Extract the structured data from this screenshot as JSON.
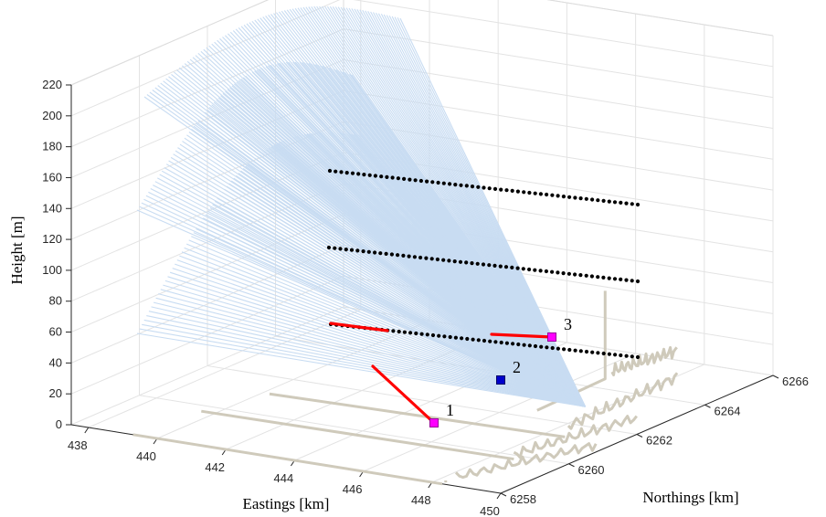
{
  "chart_data": {
    "type": "scatter",
    "title": "",
    "xlabel": "Eastings [km]",
    "ylabel": "Northings [km]",
    "zlabel": "Height [m]",
    "xlim": [
      437.5,
      450
    ],
    "ylim": [
      6258,
      6266
    ],
    "zlim": [
      0,
      220
    ],
    "xticks": [
      438,
      440,
      442,
      444,
      446,
      448,
      450
    ],
    "yticks": [
      6258,
      6260,
      6262,
      6264,
      6266
    ],
    "zticks": [
      0,
      20,
      40,
      60,
      80,
      100,
      120,
      140,
      160,
      180,
      200,
      220
    ],
    "grid": true,
    "sites": [
      {
        "label": "1",
        "x": 448.2,
        "y": 6258.2,
        "z": 0,
        "marker": "square",
        "color": "#ff00ff"
      },
      {
        "label": "2",
        "x": 448.3,
        "y": 6262.2,
        "z": 0,
        "marker": "square",
        "color": "#0000cc"
      },
      {
        "label": "3",
        "x": 446.6,
        "y": 6264.5,
        "z": 57,
        "marker": "square",
        "color": "#ff00ff"
      }
    ],
    "beam_lines": [
      {
        "from": [
          448.2,
          6258.2,
          0
        ],
        "to": [
          444.0,
          6264.8,
          60
        ],
        "color": "#ff0000"
      },
      {
        "from": [
          446.6,
          6264.5,
          57
        ],
        "to": [
          444.4,
          6263.4,
          61
        ],
        "color": "#ff0000"
      }
    ],
    "scan_lines": [
      {
        "height": 60,
        "start": [
          444.0,
          6265.2
        ],
        "end": [
          440.8,
          6265.9
        ],
        "points": 55,
        "color": "#000000"
      },
      {
        "height": 100,
        "start": [
          442.8,
          6265.5
        ],
        "end": [
          440.8,
          6265.9
        ],
        "points": 55,
        "color": "#000000"
      },
      {
        "height": 150,
        "start": [
          442.3,
          6265.3
        ],
        "end": [
          440.8,
          6265.9
        ],
        "points": 55,
        "color": "#000000"
      }
    ],
    "fans": [
      {
        "height": 60,
        "color": "#c8dcf2"
      },
      {
        "height": 140,
        "color": "#c8dcf2"
      },
      {
        "height": 205,
        "color": "#c8dcf2"
      }
    ],
    "terrain_color": "#cfcabb"
  }
}
